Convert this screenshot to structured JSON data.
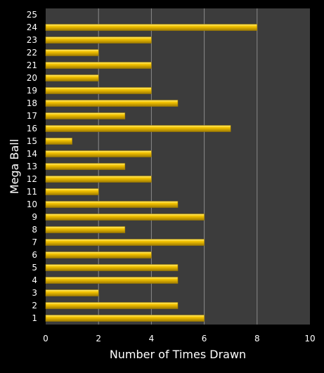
{
  "chart_data": {
    "type": "bar",
    "orientation": "horizontal",
    "title": "",
    "xlabel": "Number of Times Drawn",
    "ylabel": "Mega Ball",
    "xlim": [
      0,
      10
    ],
    "xticks": [
      0,
      2,
      4,
      6,
      8,
      10
    ],
    "grid": true,
    "legend": "none",
    "categories": [
      "1",
      "2",
      "3",
      "4",
      "5",
      "6",
      "7",
      "8",
      "9",
      "10",
      "11",
      "12",
      "13",
      "14",
      "15",
      "16",
      "17",
      "18",
      "19",
      "20",
      "21",
      "22",
      "23",
      "24",
      "25"
    ],
    "values": [
      6,
      5,
      2,
      5,
      5,
      4,
      6,
      3,
      6,
      5,
      2,
      4,
      3,
      4,
      1,
      7,
      3,
      5,
      4,
      2,
      4,
      2,
      4,
      8,
      0
    ],
    "colors": {
      "background": "#000000",
      "plot_area": "#3c3c3c",
      "gridline": "#8a8a8a",
      "bar": "#f5c400",
      "bar_highlight": "#fff07a",
      "bar_shadow": "#a07c00",
      "text": "#ffffff"
    }
  }
}
